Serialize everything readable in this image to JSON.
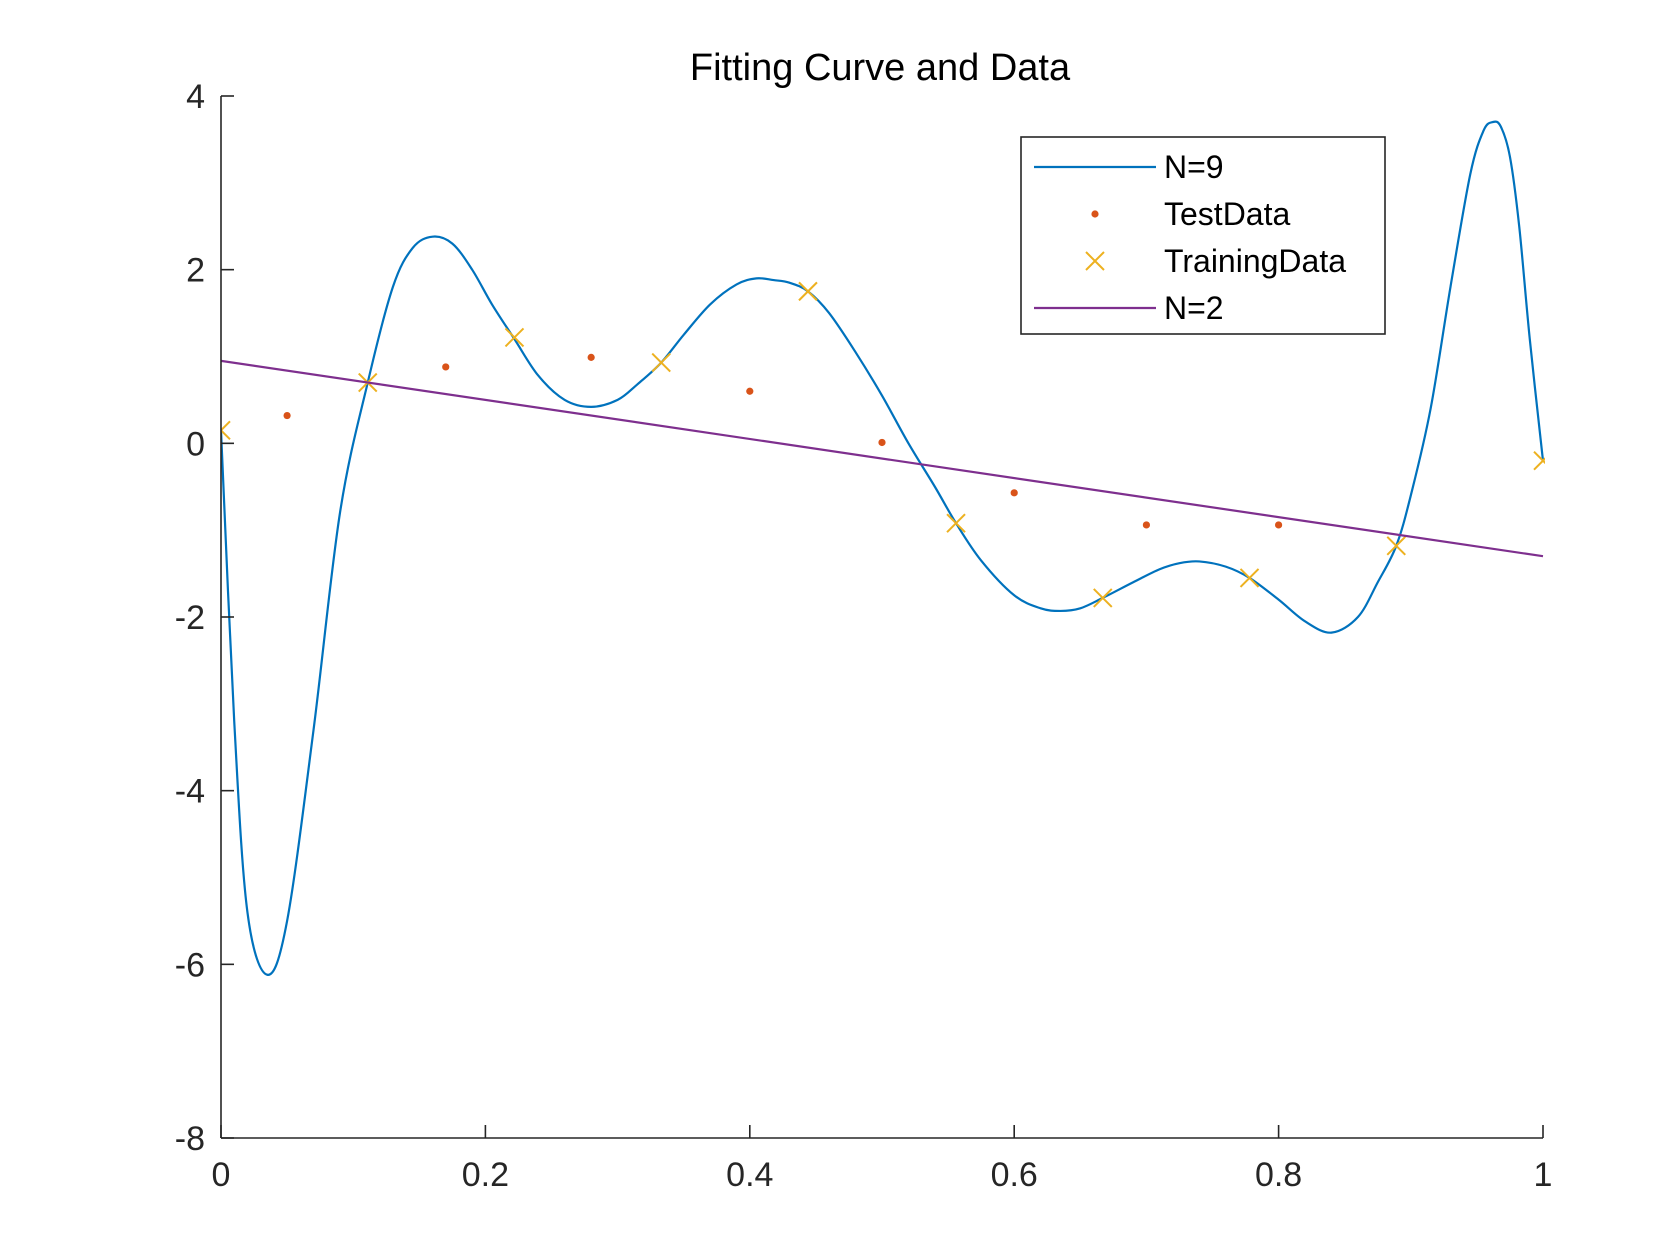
{
  "chart_data": {
    "type": "line",
    "title": "Fitting Curve and Data",
    "xlabel": "",
    "ylabel": "",
    "xlim": [
      0,
      1
    ],
    "ylim": [
      -8,
      4
    ],
    "xticks": [
      0,
      0.2,
      0.4,
      0.6,
      0.8,
      1
    ],
    "xtick_labels": [
      "0",
      "0.2",
      "0.4",
      "0.6",
      "0.8",
      "1"
    ],
    "yticks": [
      -8,
      -6,
      -4,
      -2,
      0,
      2,
      4
    ],
    "ytick_labels": [
      "-8",
      "-6",
      "-4",
      "-2",
      "0",
      "2",
      "4"
    ],
    "grid": false,
    "legend_position": "top-right",
    "legend": [
      "N=9",
      "TestData",
      "TrainingData",
      "N=2"
    ],
    "series": [
      {
        "name": "N=9",
        "style": "line",
        "color": "#0072BD",
        "x": [
          0,
          0.01,
          0.02,
          0.035,
          0.05,
          0.07,
          0.09,
          0.111,
          0.13,
          0.145,
          0.16,
          0.175,
          0.19,
          0.205,
          0.222,
          0.24,
          0.26,
          0.28,
          0.3,
          0.315,
          0.333,
          0.35,
          0.37,
          0.39,
          0.405,
          0.418,
          0.43,
          0.444,
          0.46,
          0.48,
          0.5,
          0.52,
          0.54,
          0.556,
          0.575,
          0.6,
          0.62,
          0.635,
          0.65,
          0.667,
          0.69,
          0.71,
          0.725,
          0.74,
          0.76,
          0.778,
          0.8,
          0.82,
          0.84,
          0.86,
          0.875,
          0.889,
          0.9,
          0.915,
          0.93,
          0.945,
          0.955,
          0.962,
          0.968,
          0.975,
          0.982,
          0.99,
          1.0
        ],
        "y": [
          0.15,
          -3.2,
          -5.4,
          -6.12,
          -5.5,
          -3.3,
          -0.8,
          0.7,
          1.8,
          2.25,
          2.38,
          2.3,
          2.0,
          1.6,
          1.2,
          0.78,
          0.5,
          0.42,
          0.5,
          0.68,
          0.93,
          1.25,
          1.6,
          1.83,
          1.9,
          1.88,
          1.85,
          1.75,
          1.5,
          1.05,
          0.55,
          0.0,
          -0.5,
          -0.92,
          -1.35,
          -1.75,
          -1.9,
          -1.93,
          -1.9,
          -1.78,
          -1.6,
          -1.45,
          -1.38,
          -1.36,
          -1.42,
          -1.55,
          -1.8,
          -2.05,
          -2.18,
          -2.0,
          -1.6,
          -1.18,
          -0.6,
          0.4,
          1.8,
          3.1,
          3.6,
          3.7,
          3.65,
          3.3,
          2.5,
          1.2,
          -0.2
        ]
      },
      {
        "name": "TestData",
        "style": "dots",
        "color": "#D95319",
        "x": [
          0.05,
          0.17,
          0.28,
          0.4,
          0.5,
          0.6,
          0.7,
          0.8
        ],
        "y": [
          0.32,
          0.88,
          0.99,
          0.6,
          0.01,
          -0.57,
          -0.94,
          -0.94
        ]
      },
      {
        "name": "TrainingData",
        "style": "x-markers",
        "color": "#EDB120",
        "x": [
          0,
          0.111,
          0.222,
          0.333,
          0.444,
          0.556,
          0.667,
          0.778,
          0.889,
          1.0
        ],
        "y": [
          0.15,
          0.7,
          1.22,
          0.93,
          1.75,
          -0.92,
          -1.78,
          -1.55,
          -1.18,
          -0.2
        ]
      },
      {
        "name": "N=2",
        "style": "line",
        "color": "#7E2F8E",
        "x": [
          0,
          1
        ],
        "y": [
          0.95,
          -1.3
        ]
      }
    ]
  }
}
